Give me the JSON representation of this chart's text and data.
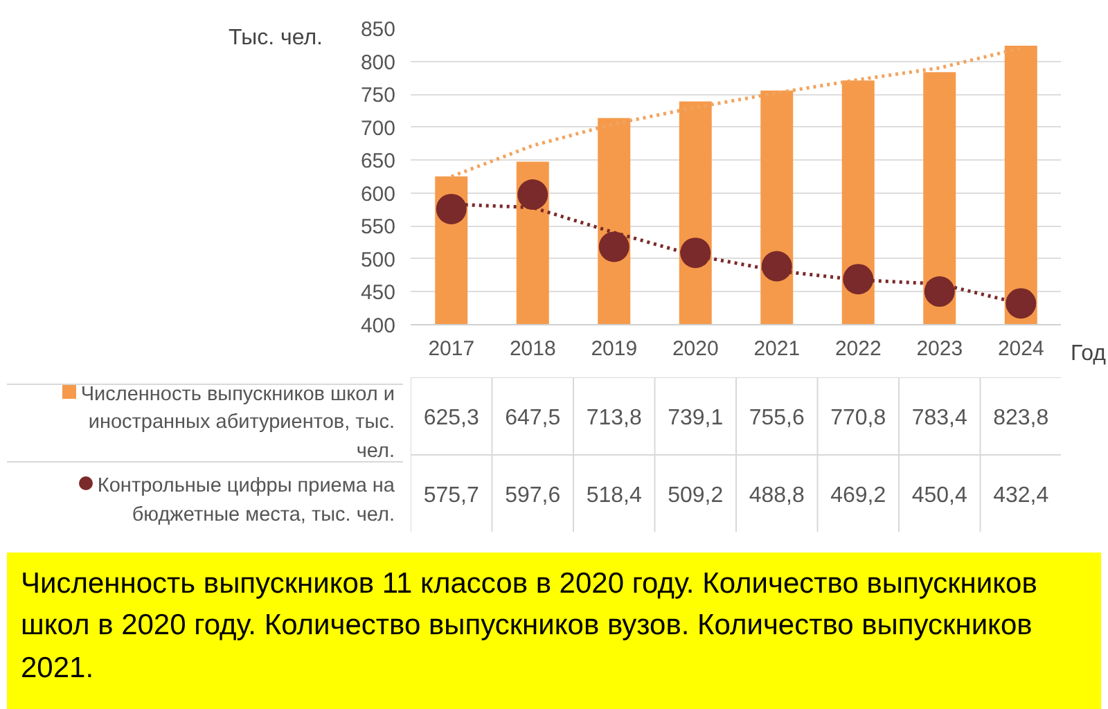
{
  "chart_data": {
    "type": "bar",
    "ylabel": "Тыс. чел.",
    "xlabel": "Год",
    "categories": [
      "2017",
      "2018",
      "2019",
      "2020",
      "2021",
      "2022",
      "2023",
      "2024"
    ],
    "series": [
      {
        "name": "Численность выпускников школ и иностранных абитуриентов, тыс. чел.",
        "color": "#f59a4b",
        "values": [
          625.3,
          647.5,
          713.8,
          739.1,
          755.6,
          770.8,
          783.4,
          823.8
        ],
        "value_labels": [
          "625,3",
          "647,5",
          "713,8",
          "739,1",
          "755,6",
          "770,8",
          "783,4",
          "823,8"
        ]
      },
      {
        "name": "Контрольные цифры приема на бюджетные места, тыс. чел.",
        "type": "scatter",
        "marker": "circle",
        "color": "#7a2a2a",
        "values": [
          575.7,
          597.6,
          518.4,
          509.2,
          488.8,
          469.2,
          450.4,
          432.4
        ],
        "value_labels": [
          "575,7",
          "597,6",
          "518,4",
          "509,2",
          "488,8",
          "469,2",
          "450,4",
          "432,4"
        ]
      },
      {
        "type": "line",
        "line_style": "dotted",
        "color": "#f2a35e",
        "values": [
          625,
          672,
          705,
          730,
          752,
          772,
          790,
          820
        ]
      },
      {
        "type": "line",
        "line_style": "dotted",
        "color": "#7a2a2a",
        "values": [
          583,
          578,
          540,
          505,
          482,
          468,
          462,
          432
        ]
      }
    ],
    "ylim": [
      400,
      850
    ],
    "yticks": [
      400,
      450,
      500,
      550,
      600,
      650,
      700,
      750,
      800,
      850
    ],
    "grid": "y",
    "legend": "bottom",
    "annotations": [
      "Численность выпускников 11 классов в 2020 году. Количество выпускников школ в 2020 году. Количество выпускников вузов. Количество выпускников 2021."
    ]
  }
}
